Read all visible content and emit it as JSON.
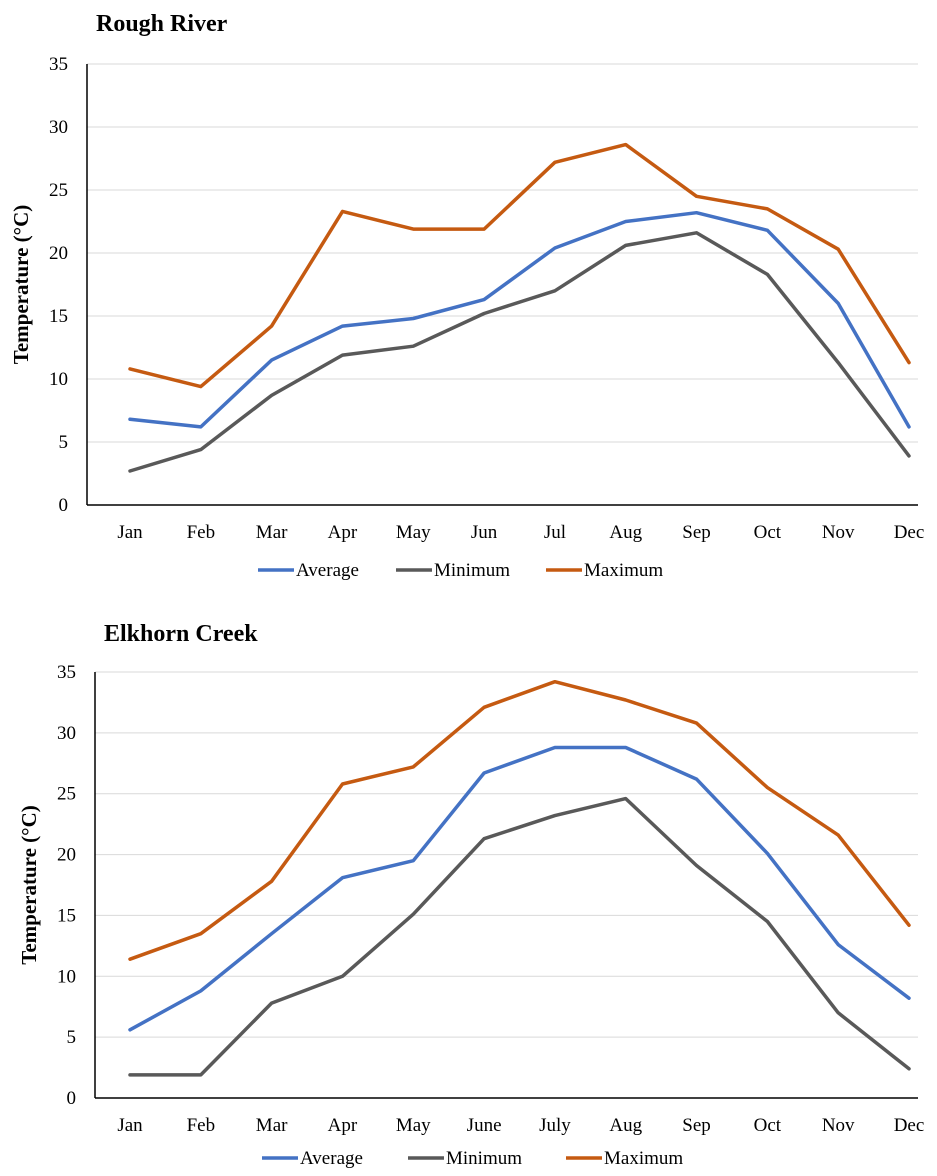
{
  "chart_data": [
    {
      "type": "line",
      "title": "Rough River",
      "xlabel": "",
      "ylabel": "Temperature (°C)",
      "ylim": [
        0,
        35
      ],
      "yticks": [
        0,
        5,
        10,
        15,
        20,
        25,
        30,
        35
      ],
      "grid": true,
      "legend_position": "bottom",
      "categories": [
        "Jan",
        "Feb",
        "Mar",
        "Apr",
        "May",
        "Jun",
        "Jul",
        "Aug",
        "Sep",
        "Oct",
        "Nov",
        "Dec"
      ],
      "series": [
        {
          "name": "Average",
          "color": "#4472C4",
          "values": [
            6.8,
            6.2,
            11.5,
            14.2,
            14.8,
            16.3,
            20.4,
            22.5,
            23.2,
            21.8,
            16.0,
            6.2
          ]
        },
        {
          "name": "Minimum",
          "color": "#595959",
          "values": [
            2.7,
            4.4,
            8.7,
            11.9,
            12.6,
            15.2,
            17.0,
            20.6,
            21.6,
            18.3,
            11.3,
            3.9
          ]
        },
        {
          "name": "Maximum",
          "color": "#C55A11",
          "values": [
            10.8,
            9.4,
            14.2,
            23.3,
            21.9,
            21.9,
            27.2,
            28.6,
            24.5,
            23.5,
            20.3,
            11.3
          ]
        }
      ]
    },
    {
      "type": "line",
      "title": "Elkhorn  Creek",
      "xlabel": "",
      "ylabel": "Temperature (°C)",
      "ylim": [
        0,
        35
      ],
      "yticks": [
        0,
        5,
        10,
        15,
        20,
        25,
        30,
        35
      ],
      "grid": true,
      "legend_position": "bottom",
      "categories": [
        "Jan",
        "Feb",
        "Mar",
        "Apr",
        "May",
        "June",
        "July",
        "Aug",
        "Sep",
        "Oct",
        "Nov",
        "Dec"
      ],
      "series": [
        {
          "name": "Average",
          "color": "#4472C4",
          "values": [
            5.6,
            8.8,
            13.5,
            18.1,
            19.5,
            26.7,
            28.8,
            28.8,
            26.2,
            20.1,
            12.6,
            8.2
          ]
        },
        {
          "name": "Minimum",
          "color": "#595959",
          "values": [
            1.9,
            1.9,
            7.8,
            10.0,
            15.1,
            21.3,
            23.2,
            24.6,
            19.1,
            14.5,
            7.0,
            2.4
          ]
        },
        {
          "name": "Maximum",
          "color": "#C55A11",
          "values": [
            11.4,
            13.5,
            17.8,
            25.8,
            27.2,
            32.1,
            34.2,
            32.7,
            30.8,
            25.5,
            21.6,
            14.2
          ]
        }
      ]
    }
  ]
}
